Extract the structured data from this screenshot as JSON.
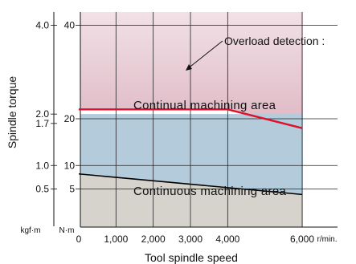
{
  "chart_data": {
    "type": "area",
    "xlabel": "Tool spindle speed",
    "ylabel": "Spindle torque",
    "x_unit": "r/min.",
    "y_unit_outer": "kgf·m",
    "y_unit_inner": "N·m",
    "xlim": [
      0,
      6500
    ],
    "ylim": [
      0,
      45
    ],
    "x_ticks": [
      0,
      1000,
      2000,
      3000,
      4000,
      6000
    ],
    "x_tick_labels": [
      "0",
      "1,000",
      "2,000",
      "3,000",
      "4,000",
      "6,000"
    ],
    "y_ticks_nm": [
      5,
      10,
      20,
      40
    ],
    "y_tick_labels_nm": [
      "5",
      "10",
      "20",
      "40"
    ],
    "y_ticks_kgfm": [
      {
        "label": "4.0",
        "nm": 40
      },
      {
        "label": "2.0",
        "nm": 21
      },
      {
        "label": "1.7",
        "nm": 19
      },
      {
        "label": "1.0",
        "nm": 10
      },
      {
        "label": "0.5",
        "nm": 5
      }
    ],
    "grid": true,
    "series": [
      {
        "name": "Overload detection",
        "color": "#e0102a",
        "x": [
          0,
          4000,
          6000
        ],
        "y": [
          22,
          22,
          18
        ]
      },
      {
        "name": "Continual machining area",
        "color": "#b3cbdb",
        "x": [
          0,
          6000
        ],
        "y": [
          21,
          21
        ]
      },
      {
        "name": "Continuous machining area",
        "color": "#000000",
        "x": [
          0,
          6000
        ],
        "y": [
          8.2,
          3.8
        ]
      }
    ],
    "annotations": [
      {
        "text": "Overload detection :",
        "x": 2400,
        "y": 20
      },
      {
        "text": "Continual machining area",
        "x": 3000,
        "y": 14
      },
      {
        "text": "Continuous machining area",
        "x": 3200,
        "y": 3
      }
    ],
    "colors": {
      "overload_zone_top": "#f1e1e6",
      "overload_zone_bottom": "#dfb8c4",
      "continual_area": "#b3cbdb",
      "continuous_area": "#d6d3cc"
    }
  }
}
